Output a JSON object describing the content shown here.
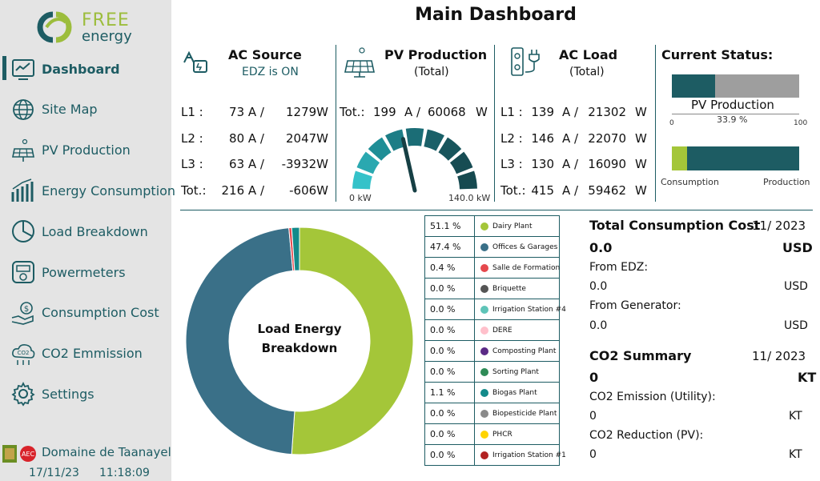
{
  "app": {
    "brand_top": "FREE",
    "brand_bottom": "energy",
    "title": "Main Dashboard"
  },
  "sidebar": {
    "items": [
      {
        "label": "Dashboard",
        "icon": "dashboard-icon",
        "active": true
      },
      {
        "label": "Site Map",
        "icon": "globe-icon"
      },
      {
        "label": "PV Production",
        "icon": "solar-panel-icon"
      },
      {
        "label": "Energy Consumption",
        "icon": "bar-chart-icon"
      },
      {
        "label": "Load Breakdown",
        "icon": "pie-chart-icon"
      },
      {
        "label": "Powermeters",
        "icon": "powermeter-icon"
      },
      {
        "label": "Consumption Cost",
        "icon": "money-hand-icon"
      },
      {
        "label": "CO2 Emmission",
        "icon": "co2-cloud-icon"
      },
      {
        "label": "Settings",
        "icon": "gear-icon"
      }
    ],
    "site_name": "Domaine de Taanayel",
    "date": "17/11/23",
    "time": "11:18:09"
  },
  "ac_source": {
    "title": "AC Source",
    "status": "EDZ is ON",
    "rows": [
      {
        "label": "L1 :",
        "amps": "73 A /",
        "watts": "1279W"
      },
      {
        "label": "L2 :",
        "amps": "80 A /",
        "watts": "2047W"
      },
      {
        "label": "L3 :",
        "amps": "63 A /",
        "watts": "-3932W"
      },
      {
        "label": "Tot.:",
        "amps": "216 A /",
        "watts": "-606W"
      }
    ]
  },
  "pv_production": {
    "title": "PV Production",
    "subtitle": "(Total)",
    "total_label": "Tot.:",
    "total_amps": "199",
    "sep": "A /",
    "total_watts": "60068",
    "unit": "W",
    "gauge_min": "0 kW",
    "gauge_max": "140.0 kW",
    "gauge_value": 60.07,
    "gauge_range": [
      0,
      140
    ]
  },
  "ac_load": {
    "title": "AC Load",
    "subtitle": "(Total)",
    "rows": [
      {
        "label": "L1 :",
        "amps": "139",
        "sep": "A /",
        "watts": "21302",
        "unit": "W"
      },
      {
        "label": "L2 :",
        "amps": "146",
        "sep": "A /",
        "watts": "22070",
        "unit": "W"
      },
      {
        "label": "L3 :",
        "amps": "130",
        "sep": "A /",
        "watts": "16090",
        "unit": "W"
      },
      {
        "label": "Tot.:",
        "amps": "415",
        "sep": "A /",
        "watts": "59462",
        "unit": "W"
      }
    ]
  },
  "current_status": {
    "title": "Current Status:",
    "pv_label": "PV Production",
    "pv_percent": "33.9 %",
    "pv_fraction": 0.339,
    "axis_min": "0",
    "axis_max": "100",
    "consumption_label": "Consumption",
    "production_label": "Production",
    "consumption_fraction": 0.12
  },
  "load_breakdown": {
    "center_line1": "Load Energy",
    "center_line2": "Breakdown",
    "items": [
      {
        "pct": "51.1 %",
        "name": "Dairy Plant",
        "value": 51.1,
        "color": "#a4c639"
      },
      {
        "pct": "47.4 %",
        "name": "Offices & Garages",
        "value": 47.4,
        "color": "#3a7088"
      },
      {
        "pct": "0.4 %",
        "name": "Salle de Formation",
        "value": 0.4,
        "color": "#e5484d"
      },
      {
        "pct": "0.0 %",
        "name": "Briquette",
        "value": 0.0,
        "color": "#555555"
      },
      {
        "pct": "0.0 %",
        "name": "Irrigation Station #4",
        "value": 0.0,
        "color": "#5fc4b8"
      },
      {
        "pct": "0.0 %",
        "name": "DERE",
        "value": 0.0,
        "color": "#ffc0cb"
      },
      {
        "pct": "0.0 %",
        "name": "Composting Plant",
        "value": 0.0,
        "color": "#5b2a86"
      },
      {
        "pct": "0.0 %",
        "name": "Sorting Plant",
        "value": 0.0,
        "color": "#2e8b57"
      },
      {
        "pct": "1.1 %",
        "name": "Biogas Plant",
        "value": 1.1,
        "color": "#138a8a"
      },
      {
        "pct": "0.0 %",
        "name": "Biopesticide Plant",
        "value": 0.0,
        "color": "#8a8a8a"
      },
      {
        "pct": "0.0 %",
        "name": "PHCR",
        "value": 0.0,
        "color": "#ffd400"
      },
      {
        "pct": "0.0 %",
        "name": "Irrigation Station #1",
        "value": 0.0,
        "color": "#b22222"
      }
    ]
  },
  "consumption_cost": {
    "title": "Total Consumption Cost",
    "period": "11/ 2023",
    "total": "0.0",
    "currency": "USD",
    "from_edz_label": "From EDZ:",
    "from_edz_value": "0.0",
    "from_edz_unit": "USD",
    "from_gen_label": "From Generator:",
    "from_gen_value": "0.0",
    "from_gen_unit": "USD"
  },
  "co2_summary": {
    "title": "CO2 Summary",
    "period": "11/ 2023",
    "total": "0",
    "unit": "KT",
    "utility_label": "CO2 Emission (Utility):",
    "utility_value": "0",
    "utility_unit": "KT",
    "pv_label": "CO2 Reduction (PV):",
    "pv_value": "0",
    "pv_unit": "KT"
  }
}
